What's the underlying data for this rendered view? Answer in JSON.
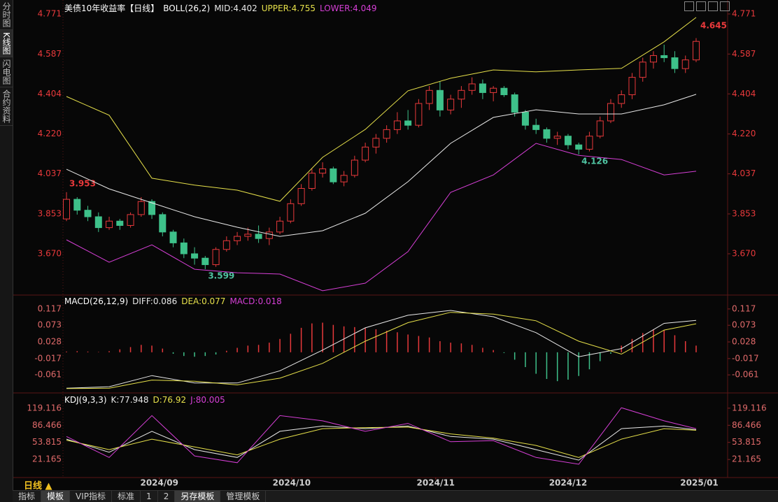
{
  "sidebar": [
    "分时图",
    "K线图",
    "闪电图",
    "合约资料"
  ],
  "sidebar_active": 1,
  "period_label": "日线 ▲",
  "toolbar": [
    "指标",
    "模板",
    "VIP指标",
    "标准",
    "1",
    "2",
    "另存模板",
    "管理模板"
  ],
  "toolbar_active": [
    1,
    6
  ],
  "chart_data": [
    {
      "type": "candlestick",
      "title": "美债10年收益率【日线】",
      "indicator": "BOLL(26,2)",
      "up_color": "#e8393b",
      "down_color": "#3ec18a",
      "xlim": [
        -0.5,
        59.5
      ],
      "ylim": [
        3.487,
        4.835
      ],
      "yticks": [
        4.771,
        4.587,
        4.404,
        {
          "value": 4.22,
          "label": "4.220"
        },
        4.037,
        3.853,
        {
          "value": 3.67,
          "label": "3.670"
        }
      ],
      "candles": [
        [
          3.83,
          3.953,
          3.82,
          3.92
        ],
        [
          3.92,
          3.93,
          3.85,
          3.87
        ],
        [
          3.87,
          3.89,
          3.82,
          3.84
        ],
        [
          3.84,
          3.86,
          3.77,
          3.79
        ],
        [
          3.79,
          3.84,
          3.78,
          3.82
        ],
        [
          3.82,
          3.83,
          3.78,
          3.8
        ],
        [
          3.8,
          3.86,
          3.79,
          3.85
        ],
        [
          3.85,
          3.93,
          3.84,
          3.91
        ],
        [
          3.91,
          3.92,
          3.83,
          3.85
        ],
        [
          3.85,
          3.86,
          3.75,
          3.77
        ],
        [
          3.77,
          3.78,
          3.7,
          3.72
        ],
        [
          3.72,
          3.74,
          3.65,
          3.67
        ],
        [
          3.67,
          3.7,
          3.62,
          3.65
        ],
        [
          3.65,
          3.66,
          3.599,
          3.62
        ],
        [
          3.62,
          3.7,
          3.61,
          3.69
        ],
        [
          3.69,
          3.75,
          3.68,
          3.73
        ],
        [
          3.73,
          3.77,
          3.71,
          3.75
        ],
        [
          3.75,
          3.79,
          3.73,
          3.76
        ],
        [
          3.76,
          3.8,
          3.72,
          3.74
        ],
        [
          3.74,
          3.79,
          3.71,
          3.77
        ],
        [
          3.77,
          3.84,
          3.76,
          3.82
        ],
        [
          3.82,
          3.92,
          3.81,
          3.9
        ],
        [
          3.9,
          3.99,
          3.89,
          3.97
        ],
        [
          3.97,
          4.06,
          3.96,
          4.04
        ],
        [
          4.04,
          4.09,
          4.02,
          4.06
        ],
        [
          4.06,
          4.07,
          3.99,
          4.0
        ],
        [
          4.0,
          4.05,
          3.98,
          4.03
        ],
        [
          4.03,
          4.12,
          4.02,
          4.1
        ],
        [
          4.1,
          4.18,
          4.09,
          4.16
        ],
        [
          4.16,
          4.22,
          4.13,
          4.2
        ],
        [
          4.2,
          4.26,
          4.18,
          4.24
        ],
        [
          4.24,
          4.32,
          4.22,
          4.28
        ],
        [
          4.28,
          4.33,
          4.24,
          4.26
        ],
        [
          4.26,
          4.38,
          4.25,
          4.36
        ],
        [
          4.36,
          4.44,
          4.33,
          4.42
        ],
        [
          4.42,
          4.46,
          4.3,
          4.33
        ],
        [
          4.33,
          4.4,
          4.31,
          4.38
        ],
        [
          4.38,
          4.44,
          4.34,
          4.42
        ],
        [
          4.42,
          4.48,
          4.4,
          4.45
        ],
        [
          4.45,
          4.47,
          4.38,
          4.41
        ],
        [
          4.41,
          4.44,
          4.37,
          4.43
        ],
        [
          4.43,
          4.44,
          4.39,
          4.4
        ],
        [
          4.4,
          4.41,
          4.3,
          4.32
        ],
        [
          4.32,
          4.33,
          4.24,
          4.26
        ],
        [
          4.26,
          4.29,
          4.22,
          4.24
        ],
        [
          4.24,
          4.25,
          4.18,
          4.2
        ],
        [
          4.2,
          4.23,
          4.17,
          4.21
        ],
        [
          4.21,
          4.22,
          4.15,
          4.17
        ],
        [
          4.17,
          4.18,
          4.126,
          4.15
        ],
        [
          4.15,
          4.23,
          4.14,
          4.21
        ],
        [
          4.21,
          4.3,
          4.2,
          4.28
        ],
        [
          4.28,
          4.38,
          4.27,
          4.36
        ],
        [
          4.36,
          4.42,
          4.34,
          4.4
        ],
        [
          4.4,
          4.5,
          4.38,
          4.48
        ],
        [
          4.48,
          4.57,
          4.46,
          4.55
        ],
        [
          4.55,
          4.6,
          4.52,
          4.58
        ],
        [
          4.58,
          4.63,
          4.55,
          4.57
        ],
        [
          4.57,
          4.6,
          4.5,
          4.52
        ],
        [
          4.52,
          4.58,
          4.5,
          4.56
        ],
        [
          4.56,
          4.66,
          4.55,
          4.645
        ]
      ],
      "line_x": [
        0,
        4,
        8,
        12,
        16,
        20,
        24,
        28,
        32,
        36,
        40,
        44,
        48,
        52,
        56,
        59
      ],
      "series": [
        {
          "name": "MID:",
          "color": "#e8e8e8",
          "values": [
            4.058,
            3.968,
            3.904,
            3.84,
            3.792,
            3.75,
            3.776,
            3.856,
            4.001,
            4.177,
            4.296,
            4.331,
            4.312,
            4.312,
            4.354,
            4.402
          ]
        },
        {
          "name": "UPPER:",
          "color": "#e6e04a",
          "values": [
            4.392,
            4.306,
            4.017,
            3.985,
            3.962,
            3.911,
            4.113,
            4.241,
            4.418,
            4.476,
            4.514,
            4.505,
            4.514,
            4.521,
            4.643,
            4.755
          ]
        },
        {
          "name": "LOWER:",
          "color": "#d63fd6",
          "values": [
            3.734,
            3.631,
            3.711,
            3.599,
            3.583,
            3.577,
            3.5,
            3.535,
            3.68,
            3.952,
            4.032,
            4.177,
            4.122,
            4.103,
            4.032,
            4.049
          ]
        }
      ]
    },
    {
      "type": "macd",
      "indicator": "MACD(26,12,9)",
      "xlim": [
        -0.5,
        59.5
      ],
      "ylim": [
        -0.106,
        0.147
      ],
      "yticks": [
        0.117,
        0.073,
        0.028,
        -0.017,
        -0.061
      ],
      "line_x": [
        0,
        4,
        8,
        12,
        16,
        20,
        24,
        28,
        32,
        36,
        40,
        44,
        48,
        52,
        56,
        59
      ],
      "series": [
        {
          "name": "DIFF:",
          "color": "#e8e8e8",
          "values": [
            -0.097,
            -0.093,
            -0.063,
            -0.083,
            -0.083,
            -0.05,
            0.006,
            0.066,
            0.1,
            0.113,
            0.096,
            0.053,
            -0.012,
            0.01,
            0.078,
            0.086
          ]
        },
        {
          "name": "DEA:",
          "color": "#e6e04a",
          "values": [
            -0.098,
            -0.097,
            -0.075,
            -0.078,
            -0.088,
            -0.07,
            -0.03,
            0.03,
            0.08,
            0.108,
            0.103,
            0.085,
            0.03,
            -0.005,
            0.06,
            0.077
          ]
        }
      ],
      "histogram": {
        "name": "MACD:",
        "color": "#d63fd6",
        "up_color": "#e8393b",
        "down_color": "#3ec18a",
        "values": [
          0.002,
          0.003,
          0.002,
          0.001,
          0.003,
          0.008,
          0.014,
          0.02,
          0.018,
          0.01,
          -0.004,
          -0.01,
          -0.012,
          -0.01,
          -0.006,
          0.004,
          0.012,
          0.018,
          0.02,
          0.026,
          0.036,
          0.05,
          0.066,
          0.078,
          0.08,
          0.074,
          0.07,
          0.068,
          0.066,
          0.062,
          0.058,
          0.054,
          0.048,
          0.044,
          0.04,
          0.03,
          0.026,
          0.024,
          0.02,
          0.012,
          0.006,
          -0.002,
          -0.02,
          -0.04,
          -0.058,
          -0.072,
          -0.078,
          -0.074,
          -0.064,
          -0.046,
          -0.024,
          -0.004,
          0.018,
          0.036,
          0.052,
          0.062,
          0.06,
          0.046,
          0.03,
          0.018
        ]
      }
    },
    {
      "type": "kdj",
      "indicator": "KDJ(9,3,3)",
      "xlim": [
        -0.5,
        59.5
      ],
      "ylim": [
        -9.3,
        142.9
      ],
      "yticks": [
        119.116,
        86.466,
        53.815,
        21.165
      ],
      "xticks": [
        {
          "value": 8.7,
          "label": "2024/09"
        },
        {
          "value": 21.1,
          "label": "2024/10"
        },
        {
          "value": 34.6,
          "label": "2024/11"
        },
        {
          "value": 47,
          "label": "2024/12"
        },
        {
          "value": 59.3,
          "label": "2025/01"
        }
      ],
      "line_x": [
        0,
        4,
        8,
        12,
        16,
        20,
        24,
        28,
        32,
        36,
        40,
        44,
        48,
        52,
        56,
        59
      ],
      "series": [
        {
          "name": "K:",
          "color": "#e8e8e8",
          "values": [
            60,
            35,
            75,
            40,
            25,
            75,
            85,
            80,
            85,
            65,
            60,
            40,
            20,
            80,
            85,
            77.948
          ]
        },
        {
          "name": "D:",
          "color": "#e6e04a",
          "values": [
            58,
            40,
            60,
            45,
            30,
            60,
            80,
            82,
            83,
            70,
            62,
            48,
            25,
            60,
            80,
            76.92
          ]
        },
        {
          "name": "J:",
          "color": "#d63fd6",
          "values": [
            65,
            25,
            105,
            28,
            15,
            105,
            95,
            75,
            90,
            55,
            57,
            25,
            12,
            120,
            95,
            80.005
          ]
        }
      ]
    }
  ]
}
